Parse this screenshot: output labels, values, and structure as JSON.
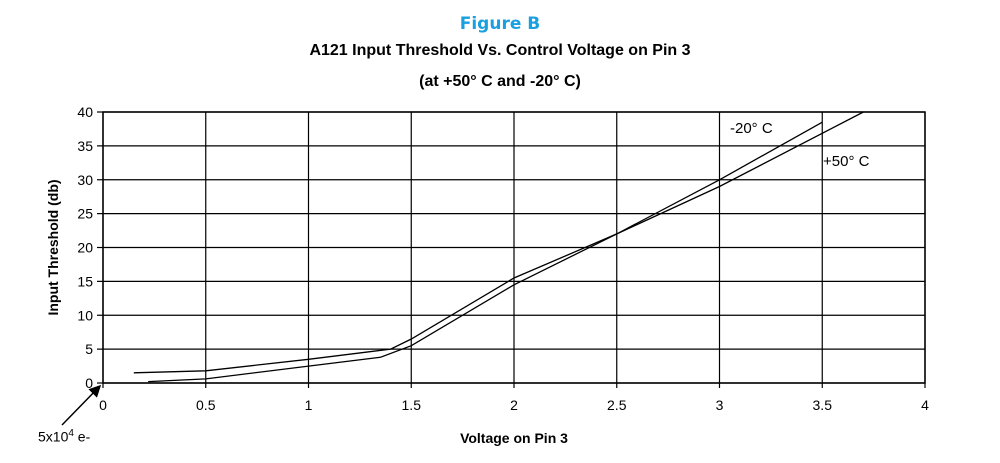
{
  "figure_label": "Figure B",
  "note": {
    "prefix": "5x10",
    "exponent": "4",
    "suffix": " e-"
  },
  "chart_data": {
    "type": "line",
    "title": "A121 Input Threshold Vs. Control Voltage on Pin 3",
    "subtitle": "(at +50° C and -20° C)",
    "xlabel": "Voltage on Pin 3",
    "ylabel": "Input Threshold (db)",
    "xlim": [
      0,
      4
    ],
    "ylim": [
      0,
      40
    ],
    "x_ticks": [
      0,
      0.5,
      1,
      1.5,
      2,
      2.5,
      3,
      3.5,
      4
    ],
    "x_tick_labels": [
      "0",
      "0.5",
      "1",
      "1.5",
      "2",
      "2.5",
      "3",
      "3.5",
      "4"
    ],
    "y_ticks": [
      0,
      5,
      10,
      15,
      20,
      25,
      30,
      35,
      40
    ],
    "y_tick_labels": [
      "0",
      "5",
      "10",
      "15",
      "20",
      "25",
      "30",
      "35",
      "40"
    ],
    "grid": true,
    "line_color": "#000000",
    "series": [
      {
        "name": "-20° C",
        "x": [
          0.15,
          0.5,
          1.0,
          1.4,
          1.5,
          2.0,
          2.5,
          3.0,
          3.5
        ],
        "y": [
          1.5,
          1.8,
          3.5,
          5.0,
          6.5,
          15.5,
          22.0,
          30.0,
          38.5
        ]
      },
      {
        "name": "+50° C",
        "x": [
          0.22,
          0.5,
          1.0,
          1.35,
          1.5,
          2.0,
          2.5,
          3.0,
          3.7
        ],
        "y": [
          0.2,
          0.6,
          2.5,
          3.8,
          5.5,
          14.5,
          22.0,
          29.0,
          40.0
        ]
      }
    ]
  }
}
